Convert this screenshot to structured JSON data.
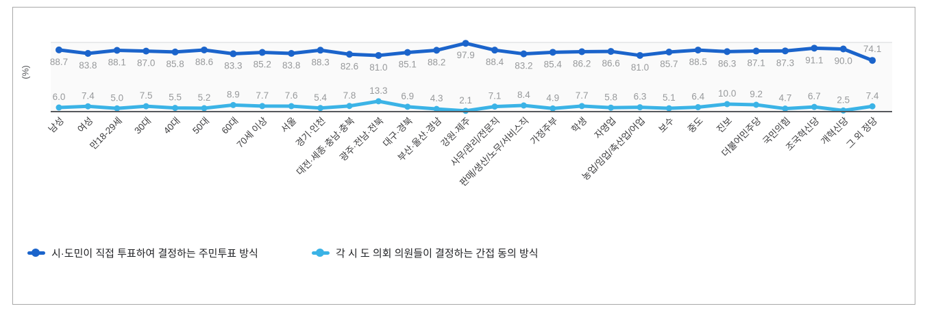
{
  "colors": {
    "series1": "#1b64cb",
    "series2": "#3bb3e6",
    "grid": "#e3e4e5",
    "baseline": "#55575b",
    "plot_bg": "#fafafa",
    "value_label": "#97999b",
    "category_label": "#3d3d3f",
    "frame_border": "#a8a8a8"
  },
  "chart_data": {
    "type": "line",
    "ylabel": "(%)",
    "ylim": [
      0,
      100
    ],
    "grid": "top gridline only",
    "legend_position": "bottom-left",
    "categories": [
      "남성",
      "여성",
      "만18-29세",
      "30대",
      "40대",
      "50대",
      "60대",
      "70세 이상",
      "서울",
      "경기·인천",
      "대전·세종·충남·충북",
      "광주·전남·전북",
      "대구·경북",
      "부산·울산·경남",
      "강원·제주",
      "사무/관리/전문직",
      "판매/생산/노무/서비스직",
      "가정주부",
      "학생",
      "자영업",
      "농업/임업/축산업/어업",
      "보수",
      "중도",
      "진보",
      "더불어민주당",
      "국민의힘",
      "조국혁신당",
      "개혁신당",
      "그 외 정당"
    ],
    "series": [
      {
        "name": "시·도민이 직접 투표하여 결정하는 주민투표 방식",
        "color": "#1b64cb",
        "values": [
          88.7,
          83.8,
          88.1,
          87.0,
          85.8,
          88.6,
          83.3,
          85.2,
          83.8,
          88.3,
          82.6,
          81.0,
          85.1,
          88.2,
          97.9,
          88.4,
          83.2,
          85.4,
          86.2,
          86.6,
          81.0,
          85.7,
          88.5,
          86.3,
          87.1,
          87.3,
          91.1,
          90.0,
          74.1
        ]
      },
      {
        "name": "각 시 도 의회 의원들이 결정하는 간접 동의 방식",
        "color": "#3bb3e6",
        "values": [
          6.0,
          7.4,
          5.0,
          7.5,
          5.5,
          5.2,
          8.9,
          7.7,
          7.6,
          5.4,
          7.8,
          13.3,
          6.9,
          4.3,
          2.1,
          7.1,
          8.4,
          4.9,
          7.7,
          5.8,
          6.3,
          5.1,
          6.4,
          10.0,
          9.2,
          4.7,
          6.7,
          2.5,
          7.4
        ]
      }
    ]
  }
}
